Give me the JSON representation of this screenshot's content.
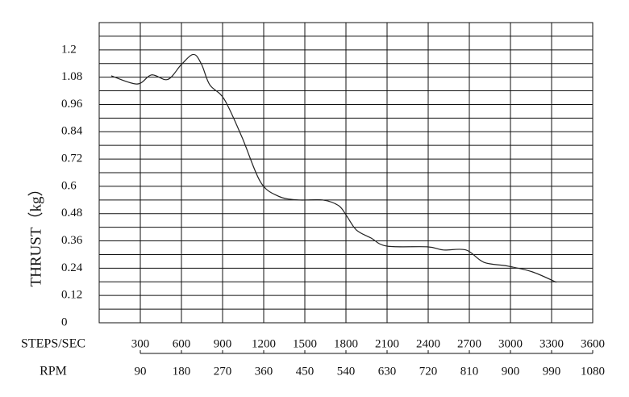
{
  "chart_data": {
    "type": "line",
    "ylabel": "THRUST（kg）",
    "xlabel": "STEPS/SEC",
    "x2label": "RPM",
    "xlim": [
      0,
      3600
    ],
    "xticks": [
      300,
      600,
      900,
      1200,
      1500,
      1800,
      2100,
      2400,
      2700,
      3000,
      3300,
      3600
    ],
    "x2lim": [
      0,
      1080
    ],
    "x2ticks": [
      90,
      180,
      270,
      360,
      450,
      540,
      630,
      720,
      810,
      900,
      990,
      1080
    ],
    "ylim": [
      0,
      1.32
    ],
    "yticks": [
      0,
      0.12,
      0.24,
      0.36,
      0.48,
      0.6,
      0.72,
      0.84,
      0.96,
      1.08,
      1.2
    ],
    "ygrid": [
      0.06,
      0.12,
      0.18,
      0.24,
      0.3,
      0.36,
      0.42,
      0.48,
      0.54,
      0.6,
      0.66,
      0.72,
      0.78,
      0.84,
      0.9,
      0.96,
      1.02,
      1.08,
      1.14,
      1.2,
      1.26
    ],
    "grid": true,
    "x": [
      88,
      276,
      382,
      500,
      600,
      688,
      747,
      806,
      912,
      1041,
      1176,
      1306,
      1453,
      1629,
      1747,
      1806,
      1876,
      1982,
      2100,
      2394,
      2512,
      2676,
      2806,
      2982,
      3159,
      3335
    ],
    "series": [
      {
        "color": "#222222",
        "values": [
          1.086,
          1.05,
          1.09,
          1.07,
          1.136,
          1.18,
          1.136,
          1.047,
          0.983,
          0.817,
          0.62,
          0.557,
          0.54,
          0.54,
          0.515,
          0.469,
          0.408,
          0.373,
          0.337,
          0.334,
          0.32,
          0.32,
          0.266,
          0.249,
          0.224,
          0.178
        ]
      }
    ]
  }
}
